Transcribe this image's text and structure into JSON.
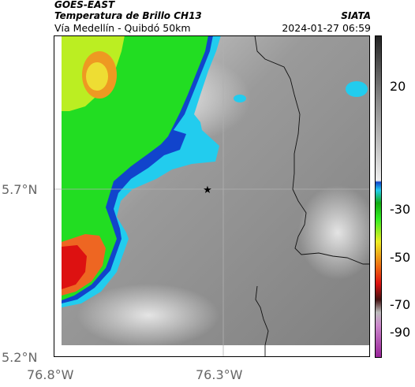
{
  "header": {
    "satellite": "GOES-EAST",
    "product": "Temperatura de Brillo CH13",
    "region": "Vía Medellín - Quibdó 50km",
    "agency": "SIATA",
    "timestamp": "2024-01-27 06:59"
  },
  "map": {
    "lat_ticks": [
      "5.7°N",
      "5.2°N"
    ],
    "lon_ticks": [
      "76.8°W",
      "76.3°W"
    ],
    "marker": "star",
    "colors": {
      "cloud_gray": "#8a8a8a",
      "warm_green": "#22dd22",
      "cold_red": "#dd1111",
      "blue_edge": "#1144cc",
      "cyan_edge": "#22ccee"
    }
  },
  "colorbar": {
    "labels": [
      "20",
      "-30",
      "-50",
      "-70",
      "-90"
    ]
  }
}
